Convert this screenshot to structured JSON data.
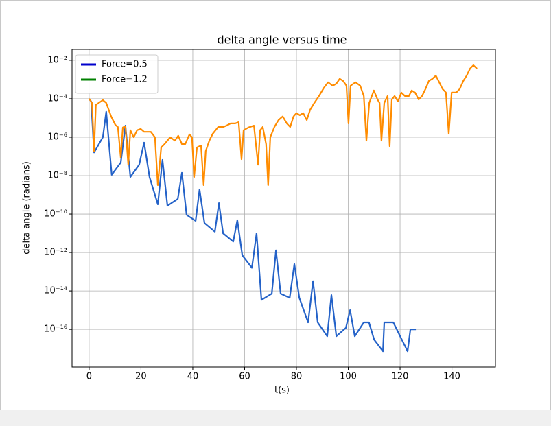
{
  "chart_data": {
    "type": "line",
    "title": "delta angle versus time",
    "xlabel": "t(s)",
    "ylabel": "delta angle (radians)",
    "xlim": [
      -6.6,
      156.8
    ],
    "xticks": [
      0,
      20,
      40,
      60,
      80,
      100,
      120,
      140
    ],
    "ylim": [
      1.1e-18,
      0.037
    ],
    "yscale": "log",
    "yticks": [
      {
        "value": 1e-16,
        "label": "10⁻¹⁶"
      },
      {
        "value": 1e-14,
        "label": "10⁻¹⁴"
      },
      {
        "value": 1e-12,
        "label": "10⁻¹²"
      },
      {
        "value": 1e-10,
        "label": "10⁻¹⁰"
      },
      {
        "value": 1e-08,
        "label": "10⁻⁸"
      },
      {
        "value": 1e-06,
        "label": "10⁻⁶"
      },
      {
        "value": 0.0001,
        "label": "10⁻⁴"
      },
      {
        "value": 0.01,
        "label": "10⁻²"
      }
    ],
    "grid": true,
    "legend": "upper left",
    "series": [
      {
        "name": "Force=0.5",
        "color": "#0000cc",
        "line_color": "#2462c8",
        "x": [
          0,
          0.8,
          1.9,
          5.3,
          6.6,
          8.7,
          12.2,
          14.0,
          15.9,
          19.3,
          21.2,
          23.3,
          26.5,
          28.3,
          30.2,
          34.2,
          35.8,
          37.6,
          41.1,
          42.6,
          44.5,
          48.5,
          50.1,
          51.7,
          55.6,
          57.2,
          59.1,
          62.8,
          64.6,
          66.5,
          70.5,
          72.1,
          73.9,
          77.4,
          79.2,
          81.1,
          84.5,
          86.4,
          88.2,
          91.9,
          93.5,
          95.4,
          99.1,
          100.7,
          102.5,
          106,
          108,
          110,
          113.4,
          113.9,
          117.4,
          122.9,
          124,
          126.1
        ],
        "values": [
          0.0001,
          7.2e-05,
          1.6e-07,
          1e-06,
          2.1e-05,
          1.1e-08,
          4.8e-08,
          4e-06,
          8.5e-09,
          3.7e-08,
          5.2e-07,
          8.5e-09,
          3.2e-10,
          6.6e-08,
          2.7e-10,
          6.1e-10,
          1.4e-08,
          9.2e-11,
          4.4e-11,
          1.9e-09,
          3.4e-11,
          1.2e-11,
          3.7e-10,
          1e-11,
          3.7e-12,
          4.8e-11,
          7.2e-13,
          1.6e-13,
          1e-11,
          3.4e-15,
          7.2e-15,
          1.3e-12,
          7.2e-15,
          4.4e-15,
          2.5e-13,
          4.4e-15,
          2.3e-16,
          3.2e-14,
          2.3e-16,
          4.4e-17,
          6.1e-15,
          4.4e-17,
          1.2e-16,
          1e-15,
          4.4e-17,
          2.3e-16,
          2.3e-16,
          2.9e-17,
          7.2e-18,
          2.3e-16,
          2.3e-16,
          7.2e-18,
          1e-16,
          1e-16
        ]
      },
      {
        "name": "Force=1.2",
        "color": "#008000",
        "line_color": "#ff8c00",
        "x": [
          0,
          1.1,
          1.9,
          2.6,
          5.3,
          6.6,
          8.5,
          10.1,
          11.1,
          12.2,
          13.0,
          14.0,
          15.1,
          15.9,
          17.2,
          18.5,
          19.9,
          21.2,
          22.5,
          23.8,
          25.4,
          26.5,
          27.8,
          29.1,
          31.3,
          33.1,
          34.4,
          35.8,
          37.1,
          38.7,
          39.7,
          40.5,
          41.6,
          43.2,
          44.2,
          45.0,
          46.4,
          47.7,
          49.8,
          51.7,
          53.0,
          54.6,
          56.4,
          57.7,
          58.8,
          59.6,
          61.5,
          63.6,
          65.2,
          66.0,
          67.0,
          68.3,
          69.1,
          69.9,
          71.5,
          73.1,
          74.7,
          76.3,
          77.6,
          78.9,
          80.0,
          81.3,
          82.6,
          84.0,
          85.3,
          86.9,
          88.7,
          90.6,
          92.2,
          94.0,
          95.4,
          96.7,
          98.0,
          99.3,
          100.1,
          100.9,
          102.8,
          104.6,
          106.0,
          107.0,
          108.1,
          109.9,
          111.3,
          112.1,
          112.8,
          113.9,
          115.2,
          116.0,
          116.8,
          117.9,
          119.2,
          120.5,
          121.9,
          123.4,
          124.5,
          125.8,
          127.2,
          128.5,
          129.8,
          131.1,
          132.5,
          133.8,
          135.1,
          136.4,
          137.7,
          138.8,
          139.9,
          141.7,
          143.0,
          144.4,
          145.7,
          147.0,
          148.3,
          149.1,
          149.7
        ],
        "values": [
          0.0001,
          6.1e-05,
          1.9e-07,
          4.8e-05,
          8.5e-05,
          6.1e-05,
          1.2e-05,
          4.4e-06,
          3.4e-06,
          8.5e-08,
          3.2e-06,
          3.7e-06,
          3.7e-08,
          2.3e-06,
          1e-06,
          2.3e-06,
          2.7e-06,
          1.9e-06,
          1.9e-06,
          1.9e-06,
          1e-06,
          3.2e-09,
          2.9e-07,
          4.4e-07,
          1e-06,
          6.6e-07,
          1.2e-06,
          4.4e-07,
          4.4e-07,
          1.4e-06,
          1e-06,
          8.5e-09,
          2.9e-07,
          3.7e-07,
          3.2e-09,
          1.9e-07,
          6.6e-07,
          1.5e-06,
          3.4e-06,
          3.4e-06,
          4e-06,
          5.2e-06,
          5.2e-06,
          6.1e-06,
          7.2e-08,
          2.3e-06,
          3.2e-06,
          4e-06,
          3.7e-08,
          2.3e-06,
          3.4e-06,
          4.4e-07,
          3.2e-09,
          1e-06,
          3.4e-06,
          7.8e-06,
          1.2e-05,
          5.2e-06,
          3.4e-06,
          1.2e-05,
          1.8e-05,
          1.4e-05,
          1.8e-05,
          7.8e-06,
          2.7e-05,
          6.1e-05,
          0.00014,
          0.00037,
          0.00072,
          0.00048,
          0.00061,
          0.0011,
          0.00085,
          0.00048,
          5.2e-06,
          0.00048,
          0.00072,
          0.00048,
          0.00014,
          6.6e-07,
          6.1e-05,
          0.00027,
          9.2e-05,
          6.1e-05,
          6.6e-07,
          6.1e-05,
          0.00014,
          3.4e-07,
          9.2e-05,
          0.00014,
          7.2e-05,
          0.00021,
          0.00014,
          0.00014,
          0.00027,
          0.00021,
          9.2e-05,
          0.00014,
          0.00032,
          0.00085,
          0.0011,
          0.0016,
          0.00072,
          0.00032,
          0.00021,
          1.5e-06,
          0.00021,
          0.00021,
          0.00032,
          0.00085,
          0.0016,
          0.0037,
          0.0056,
          0.0044,
          0.0037
        ]
      }
    ]
  }
}
